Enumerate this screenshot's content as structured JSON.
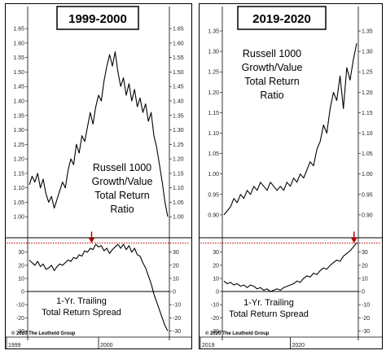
{
  "copyright": "© 2020 The Leuthold Group",
  "chart_data": [
    {
      "type": "line",
      "id": "left",
      "title": "1999-2000",
      "upper": {
        "label_lines": [
          "Russell 1000",
          "Growth/Value",
          "Total Return",
          "Ratio"
        ],
        "ylim": [
          0.95,
          1.67
        ],
        "ticks": [
          "1.65",
          "1.60",
          "1.55",
          "1.50",
          "1.45",
          "1.40",
          "1.35",
          "1.30",
          "1.25",
          "1.20",
          "1.15",
          "1.10",
          "1.05",
          "1.00"
        ],
        "tick_values": [
          1.65,
          1.6,
          1.55,
          1.5,
          1.45,
          1.4,
          1.35,
          1.3,
          1.25,
          1.2,
          1.15,
          1.1,
          1.05,
          1.0
        ],
        "x": [
          0,
          0.02,
          0.04,
          0.06,
          0.08,
          0.1,
          0.12,
          0.14,
          0.16,
          0.18,
          0.2,
          0.22,
          0.24,
          0.26,
          0.28,
          0.3,
          0.32,
          0.34,
          0.36,
          0.38,
          0.4,
          0.42,
          0.44,
          0.46,
          0.48,
          0.5,
          0.52,
          0.54,
          0.56,
          0.58,
          0.6,
          0.62,
          0.64,
          0.66,
          0.68,
          0.7,
          0.72,
          0.74,
          0.76,
          0.78,
          0.8,
          0.82,
          0.84,
          0.86,
          0.88,
          0.9,
          0.92,
          0.94,
          0.96,
          0.98,
          1.0
        ],
        "values": [
          1.11,
          1.14,
          1.12,
          1.15,
          1.1,
          1.13,
          1.08,
          1.05,
          1.07,
          1.03,
          1.06,
          1.09,
          1.12,
          1.1,
          1.16,
          1.2,
          1.18,
          1.25,
          1.22,
          1.28,
          1.26,
          1.31,
          1.36,
          1.32,
          1.38,
          1.42,
          1.4,
          1.47,
          1.52,
          1.56,
          1.52,
          1.57,
          1.5,
          1.45,
          1.48,
          1.42,
          1.46,
          1.4,
          1.44,
          1.38,
          1.41,
          1.36,
          1.39,
          1.33,
          1.36,
          1.28,
          1.24,
          1.18,
          1.12,
          1.05,
          1.0
        ]
      },
      "lower": {
        "label_lines": [
          "1-Yr. Trailing",
          "Total Return Spread"
        ],
        "ylim": [
          -31,
          41
        ],
        "ticks": [
          "30",
          "20",
          "10",
          "0",
          "-10",
          "-20",
          "-30"
        ],
        "tick_values": [
          30,
          20,
          10,
          0,
          -10,
          -20,
          -30
        ],
        "reference_line": 37,
        "marker_x": 0.45,
        "x": [
          0,
          0.02,
          0.04,
          0.06,
          0.08,
          0.1,
          0.12,
          0.14,
          0.16,
          0.18,
          0.2,
          0.22,
          0.24,
          0.26,
          0.28,
          0.3,
          0.32,
          0.34,
          0.36,
          0.38,
          0.4,
          0.42,
          0.44,
          0.46,
          0.48,
          0.5,
          0.52,
          0.54,
          0.56,
          0.58,
          0.6,
          0.62,
          0.64,
          0.66,
          0.68,
          0.7,
          0.72,
          0.74,
          0.76,
          0.78,
          0.8,
          0.82,
          0.84,
          0.86,
          0.88,
          0.9,
          0.92,
          0.94,
          0.96,
          0.98,
          1.0
        ],
        "values": [
          24,
          22,
          20,
          23,
          19,
          21,
          17,
          18,
          20,
          16,
          19,
          21,
          20,
          22,
          24,
          23,
          26,
          25,
          28,
          27,
          31,
          30,
          33,
          32,
          36,
          34,
          35,
          31,
          33,
          29,
          32,
          34,
          36,
          33,
          36,
          32,
          35,
          30,
          33,
          28,
          27,
          22,
          18,
          12,
          6,
          -2,
          -8,
          -14,
          -20,
          -26,
          -30
        ]
      },
      "x_ticks": [
        {
          "label": "1999",
          "pos": 0
        },
        {
          "label": "2000",
          "pos": 0.5
        }
      ]
    },
    {
      "type": "line",
      "id": "right",
      "title": "2019-2020",
      "upper": {
        "label_lines": [
          "Russell 1000",
          "Growth/Value",
          "Total Return",
          "Ratio"
        ],
        "ylim": [
          0.86,
          1.37
        ],
        "ticks": [
          "1.35",
          "1.30",
          "1.25",
          "1.20",
          "1.15",
          "1.10",
          "1.05",
          "1.00",
          "0.95",
          "0.90"
        ],
        "tick_values": [
          1.35,
          1.3,
          1.25,
          1.2,
          1.15,
          1.1,
          1.05,
          1.0,
          0.95,
          0.9
        ],
        "x": [
          0,
          0.025,
          0.05,
          0.075,
          0.1,
          0.125,
          0.15,
          0.175,
          0.2,
          0.225,
          0.25,
          0.275,
          0.3,
          0.325,
          0.35,
          0.375,
          0.4,
          0.425,
          0.45,
          0.475,
          0.5,
          0.525,
          0.55,
          0.575,
          0.6,
          0.625,
          0.65,
          0.675,
          0.7,
          0.725,
          0.75,
          0.775,
          0.8,
          0.825,
          0.85,
          0.875,
          0.9,
          0.925,
          0.95,
          0.975,
          1.0
        ],
        "values": [
          0.9,
          0.91,
          0.92,
          0.94,
          0.93,
          0.95,
          0.94,
          0.96,
          0.95,
          0.97,
          0.96,
          0.98,
          0.97,
          0.96,
          0.98,
          0.97,
          0.96,
          0.97,
          0.96,
          0.98,
          0.97,
          0.99,
          0.98,
          1.0,
          0.99,
          1.01,
          1.03,
          1.02,
          1.06,
          1.08,
          1.12,
          1.1,
          1.16,
          1.2,
          1.18,
          1.24,
          1.16,
          1.26,
          1.23,
          1.28,
          1.32
        ]
      },
      "lower": {
        "label_lines": [
          "1-Yr. Trailing",
          "Total Return Spread"
        ],
        "ylim": [
          -31,
          41
        ],
        "ticks": [
          "30",
          "20",
          "10",
          "0",
          "-10",
          "-20",
          "-30"
        ],
        "tick_values": [
          30,
          20,
          10,
          0,
          -10,
          -20,
          -30
        ],
        "reference_line": 37,
        "marker_x": 0.98,
        "x": [
          0,
          0.025,
          0.05,
          0.075,
          0.1,
          0.125,
          0.15,
          0.175,
          0.2,
          0.225,
          0.25,
          0.275,
          0.3,
          0.325,
          0.35,
          0.375,
          0.4,
          0.425,
          0.45,
          0.475,
          0.5,
          0.525,
          0.55,
          0.575,
          0.6,
          0.625,
          0.65,
          0.675,
          0.7,
          0.725,
          0.75,
          0.775,
          0.8,
          0.825,
          0.85,
          0.875,
          0.9,
          0.925,
          0.95,
          0.975,
          1.0
        ],
        "values": [
          8,
          6,
          7,
          5,
          6,
          4,
          5,
          3,
          5,
          4,
          2,
          3,
          1,
          2,
          0,
          1,
          2,
          1,
          3,
          4,
          5,
          6,
          8,
          7,
          10,
          12,
          11,
          14,
          13,
          16,
          18,
          17,
          20,
          22,
          24,
          23,
          27,
          29,
          31,
          34,
          37
        ]
      },
      "x_ticks": [
        {
          "label": "2019",
          "pos": 0
        },
        {
          "label": "2020",
          "pos": 0.5
        }
      ]
    }
  ]
}
